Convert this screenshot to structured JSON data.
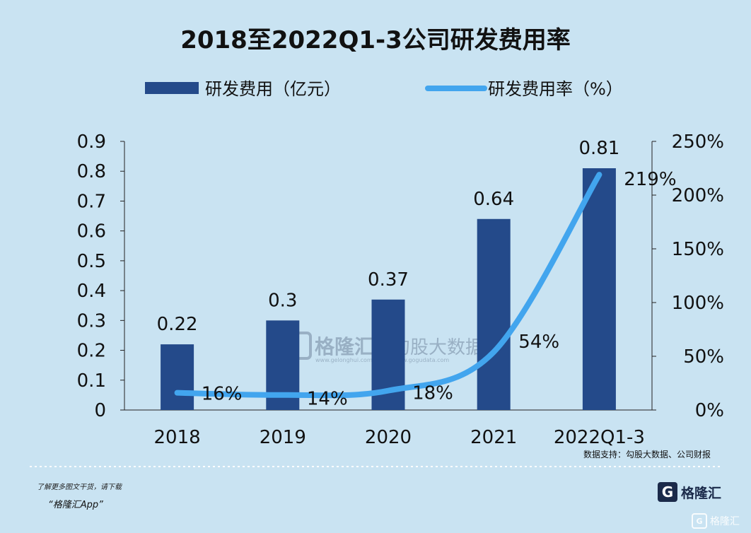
{
  "chart_data": {
    "type": "bar",
    "title": "2018至2022Q1-3公司研发费用率",
    "categories": [
      "2018",
      "2019",
      "2020",
      "2021",
      "2022Q1-3"
    ],
    "series": [
      {
        "name": "研发费用（亿元）",
        "type": "bar",
        "axis": "left",
        "color": "#244a8a",
        "values": [
          0.22,
          0.3,
          0.37,
          0.64,
          0.81
        ],
        "labels": [
          "0.22",
          "0.3",
          "0.37",
          "0.64",
          "0.81"
        ]
      },
      {
        "name": "研发费用率（%）",
        "type": "line",
        "axis": "right",
        "color": "#42a5ee",
        "values": [
          16,
          14,
          18,
          54,
          219
        ],
        "labels": [
          "16%",
          "14%",
          "18%",
          "54%",
          "219%"
        ]
      }
    ],
    "left_axis": {
      "min": 0,
      "max": 0.9,
      "ticks": [
        "0",
        "0.1",
        "0.2",
        "0.3",
        "0.4",
        "0.5",
        "0.6",
        "0.7",
        "0.8",
        "0.9"
      ]
    },
    "right_axis": {
      "min": 0,
      "max": 250,
      "ticks": [
        "0%",
        "50%",
        "100%",
        "150%",
        "200%",
        "250%"
      ]
    },
    "legend_position": "top",
    "grid": false,
    "source": "数据支持：勾股大数据、公司财报"
  },
  "watermark": {
    "brand": "格隆汇",
    "url": "www.gelonghui.com",
    "brand2": "勾股大数据",
    "url2": "www.gogudata.com"
  },
  "footer": {
    "note": "了解更多图文干货，请下载",
    "app": "“格隆汇App”",
    "logo_glyph": "G",
    "logo_text": "格隆汇",
    "corner_text": "格隆汇"
  }
}
